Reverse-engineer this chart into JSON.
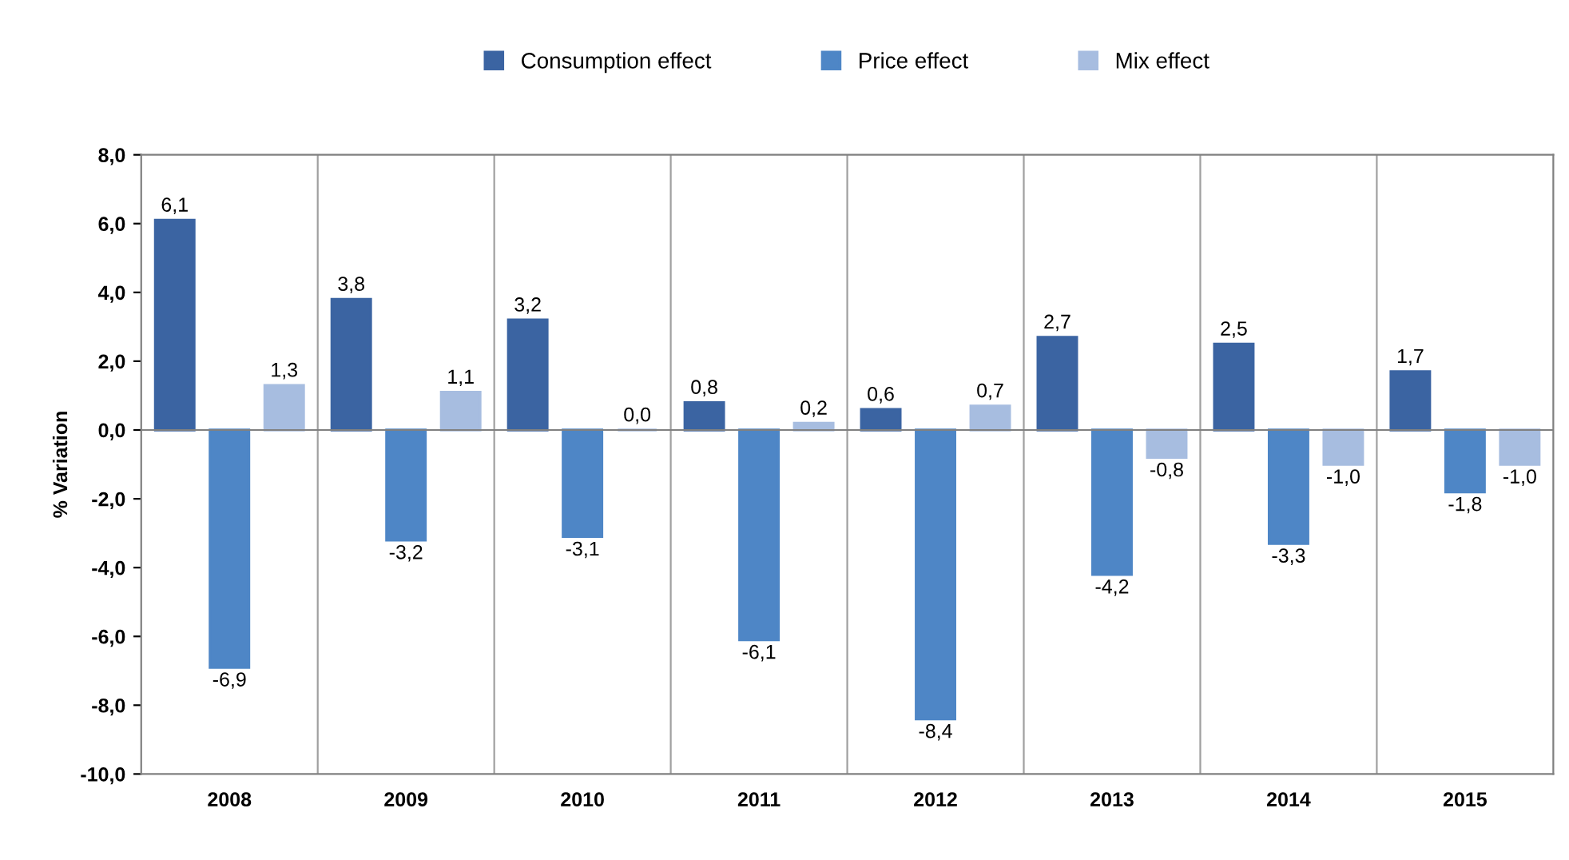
{
  "chart_data": {
    "type": "bar",
    "ylabel": "% Variation",
    "categories": [
      "2008",
      "2009",
      "2010",
      "2011",
      "2012",
      "2013",
      "2014",
      "2015"
    ],
    "series": [
      {
        "name": "Consumption effect",
        "color": "#3b64a2",
        "values": [
          6.1,
          3.8,
          3.2,
          0.8,
          0.6,
          2.7,
          2.5,
          1.7
        ],
        "value_labels": [
          "6,1",
          "3,8",
          "3,2",
          "0,8",
          "0,6",
          "2,7",
          "2,5",
          "1,7"
        ]
      },
      {
        "name": "Price effect",
        "color": "#4e86c6",
        "values": [
          -6.9,
          -3.2,
          -3.1,
          -6.1,
          -8.4,
          -4.2,
          -3.3,
          -1.8
        ],
        "value_labels": [
          "-6,9",
          "-3,2",
          "-3,1",
          "-6,1",
          "-8,4",
          "-4,2",
          "-3,3",
          "-1,8"
        ]
      },
      {
        "name": "Mix effect",
        "color": "#a7bde0",
        "values": [
          1.3,
          1.1,
          0.0,
          0.2,
          0.7,
          -0.8,
          -1.0,
          -1.0
        ],
        "value_labels": [
          "1,3",
          "1,1",
          "0,0",
          "0,2",
          "0,7",
          "-0,8",
          "-1,0",
          "-1,0"
        ]
      }
    ],
    "ylim": [
      -10,
      8
    ],
    "yticks": [
      {
        "value": -10,
        "label": "-10,0"
      },
      {
        "value": -8,
        "label": "-8,0"
      },
      {
        "value": -6,
        "label": "-6,0"
      },
      {
        "value": -4,
        "label": "-4,0"
      },
      {
        "value": -2,
        "label": "-2,0"
      },
      {
        "value": 0,
        "label": "0,0"
      },
      {
        "value": 2,
        "label": "2,0"
      },
      {
        "value": 4,
        "label": "4,0"
      },
      {
        "value": 6,
        "label": "6,0"
      },
      {
        "value": 8,
        "label": "8,0"
      }
    ],
    "grid": "x",
    "legend": "top"
  }
}
